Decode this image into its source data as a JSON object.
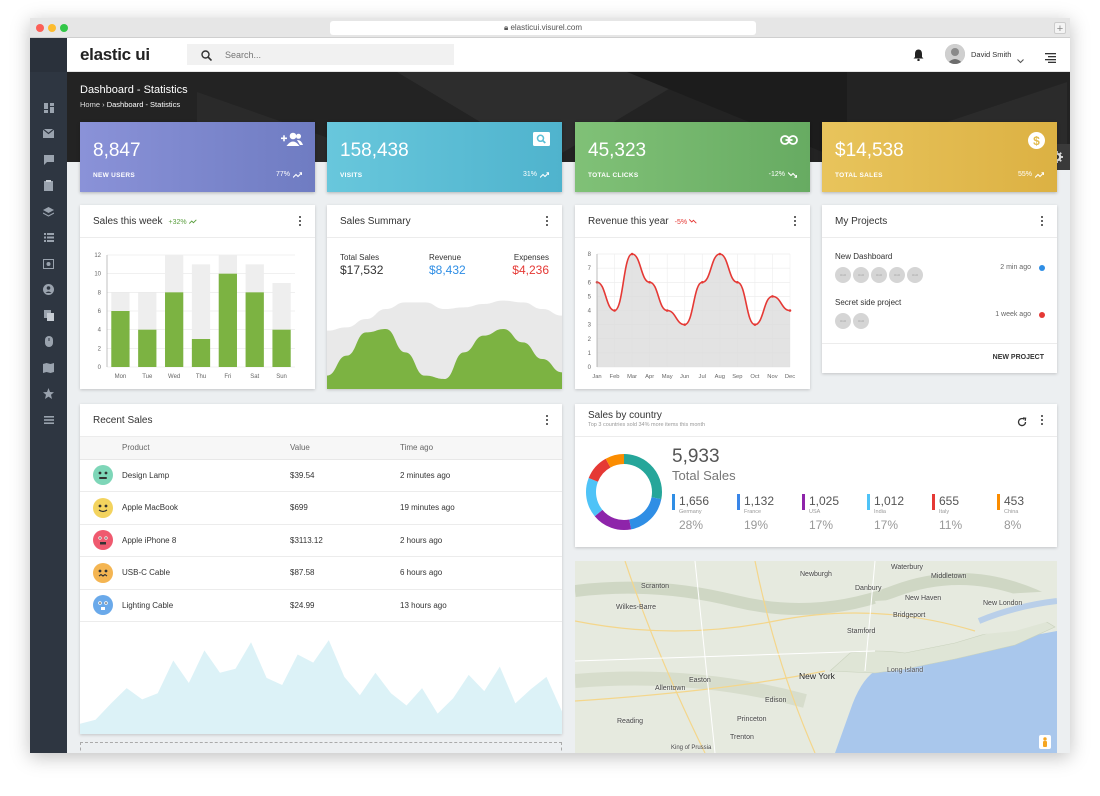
{
  "browser": {
    "url": "elasticui.visurel.com"
  },
  "app": {
    "brand": "elastic ui",
    "search_placeholder": "Search...",
    "user_name": "David Smith"
  },
  "page": {
    "title": "Dashboard - Statistics",
    "breadcrumb_home": "Home",
    "breadcrumb_current": "Dashboard - Statistics"
  },
  "stats": [
    {
      "value": "8,847",
      "label": "NEW USERS",
      "pct": "77%",
      "color": "#7b86cc",
      "icon": "add-users-icon"
    },
    {
      "value": "158,438",
      "label": "VISITS",
      "pct": "31%",
      "color": "#5bbfd6",
      "icon": "search-icon"
    },
    {
      "value": "45,323",
      "label": "TOTAL CLICKS",
      "pct": "-12%",
      "color": "#74b56e",
      "icon": "link-icon"
    },
    {
      "value": "$14,538",
      "label": "TOTAL SALES",
      "pct": "55%",
      "color": "#e2bb4d",
      "icon": "dollar-icon"
    }
  ],
  "sales_week": {
    "title": "Sales this week",
    "badge": "+32%"
  },
  "sales_summary": {
    "title": "Sales Summary",
    "total_label": "Total Sales",
    "total_value": "$17,532",
    "revenue_label": "Revenue",
    "revenue_value": "$8,432",
    "expenses_label": "Expenses",
    "expenses_value": "$4,236"
  },
  "revenue_year": {
    "title": "Revenue this year",
    "badge": "-5%"
  },
  "projects": {
    "title": "My Projects",
    "items": [
      {
        "name": "New Dashboard",
        "time": "2 min ago",
        "dot": "#2f8ee5"
      },
      {
        "name": "Secret side project",
        "time": "1 week ago",
        "dot": "#e53935"
      }
    ],
    "button": "NEW PROJECT"
  },
  "recent_sales": {
    "title": "Recent Sales",
    "columns": [
      "Product",
      "Value",
      "Time ago"
    ],
    "rows": [
      {
        "product": "Design Lamp",
        "value": "$39.54",
        "time": "2 minutes ago",
        "color": "#7ed6b8"
      },
      {
        "product": "Apple MacBook",
        "value": "$699",
        "time": "19 minutes ago",
        "color": "#f3d35e"
      },
      {
        "product": "Apple iPhone 8",
        "value": "$3113.12",
        "time": "2 hours ago",
        "color": "#ef5a6f"
      },
      {
        "product": "USB-C Cable",
        "value": "$87.58",
        "time": "6 hours ago",
        "color": "#f4b552"
      },
      {
        "product": "Lighting Cable",
        "value": "$24.99",
        "time": "13 hours ago",
        "color": "#6aa9ea"
      }
    ]
  },
  "sales_country": {
    "title": "Sales by country",
    "subtitle": "Top 3 countries sold 34% more items this month",
    "total_value": "5,933",
    "total_label": "Total Sales",
    "countries": [
      {
        "value": "1,656",
        "name": "Germany",
        "pct": "28%",
        "color": "#2f8ee5"
      },
      {
        "value": "1,132",
        "name": "France",
        "pct": "19%",
        "color": "#3a86e8"
      },
      {
        "value": "1,025",
        "name": "USA",
        "pct": "17%",
        "color": "#8e24aa"
      },
      {
        "value": "1,012",
        "name": "India",
        "pct": "17%",
        "color": "#4fc3f7"
      },
      {
        "value": "655",
        "name": "Italy",
        "pct": "11%",
        "color": "#e53935"
      },
      {
        "value": "453",
        "name": "China",
        "pct": "8%",
        "color": "#fb8c00"
      }
    ]
  },
  "map": {
    "labels": [
      "Waterbury",
      "Middletown",
      "Newburgh",
      "Danbury",
      "New Haven",
      "New London",
      "Scranton",
      "Bridgeport",
      "Wilkes-Barre",
      "Stamford",
      "Long Island",
      "Allentown",
      "Easton",
      "New York",
      "Edison",
      "Reading",
      "Princeton",
      "Trenton",
      "King of Prussia"
    ]
  },
  "chart_data": [
    {
      "type": "bar",
      "title": "Sales this week",
      "categories": [
        "Mon",
        "Tue",
        "Wed",
        "Thu",
        "Fri",
        "Sat",
        "Sun"
      ],
      "series": [
        {
          "values": [
            6,
            4,
            8,
            3,
            10,
            8,
            4
          ]
        },
        {
          "values": [
            8,
            8,
            12,
            11,
            12,
            11,
            9
          ]
        }
      ],
      "yticks": [
        "0",
        "2",
        "4",
        "6",
        "8",
        "10",
        "12"
      ],
      "ylim": [
        0,
        12
      ],
      "grid": true
    },
    {
      "type": "area",
      "title": "Sales Summary",
      "x": [
        0,
        1,
        2,
        3,
        4,
        5,
        6,
        7,
        8,
        9,
        10,
        11,
        12
      ],
      "series": [
        {
          "values": [
            35,
            37,
            42,
            48,
            52,
            52,
            48,
            49,
            51,
            53,
            52,
            48,
            44
          ]
        },
        {
          "values": [
            8,
            20,
            34,
            36,
            22,
            8,
            6,
            22,
            32,
            36,
            28,
            18,
            10
          ]
        }
      ]
    },
    {
      "type": "line",
      "title": "Revenue this year",
      "categories": [
        "Jan",
        "Feb",
        "Mar",
        "Apr",
        "May",
        "Jun",
        "Jul",
        "Aug",
        "Sep",
        "Oct",
        "Nov",
        "Dec"
      ],
      "values": [
        6,
        4,
        8,
        6,
        4,
        3,
        6,
        8,
        6,
        3,
        5,
        4
      ],
      "yticks": [
        "0",
        "1",
        "2",
        "3",
        "4",
        "5",
        "6",
        "7",
        "8"
      ],
      "ylim": [
        0,
        8
      ],
      "grid": true
    },
    {
      "type": "area",
      "title": "Recent Sales",
      "values": [
        10,
        14,
        30,
        45,
        34,
        40,
        72,
        50,
        82,
        60,
        64,
        90,
        55,
        48,
        78,
        70,
        92,
        56,
        38,
        60,
        40,
        28,
        45,
        20,
        35,
        58,
        42,
        66,
        30,
        44,
        56,
        22
      ]
    },
    {
      "type": "pie",
      "title": "Sales by country",
      "values": [
        28,
        19,
        17,
        17,
        11,
        8
      ],
      "labels": [
        "Germany",
        "France",
        "USA",
        "India",
        "Italy",
        "China"
      ],
      "colors": [
        "#26a69a",
        "#2f8ee5",
        "#8e24aa",
        "#4fc3f7",
        "#e53935",
        "#fb8c00"
      ]
    }
  ]
}
